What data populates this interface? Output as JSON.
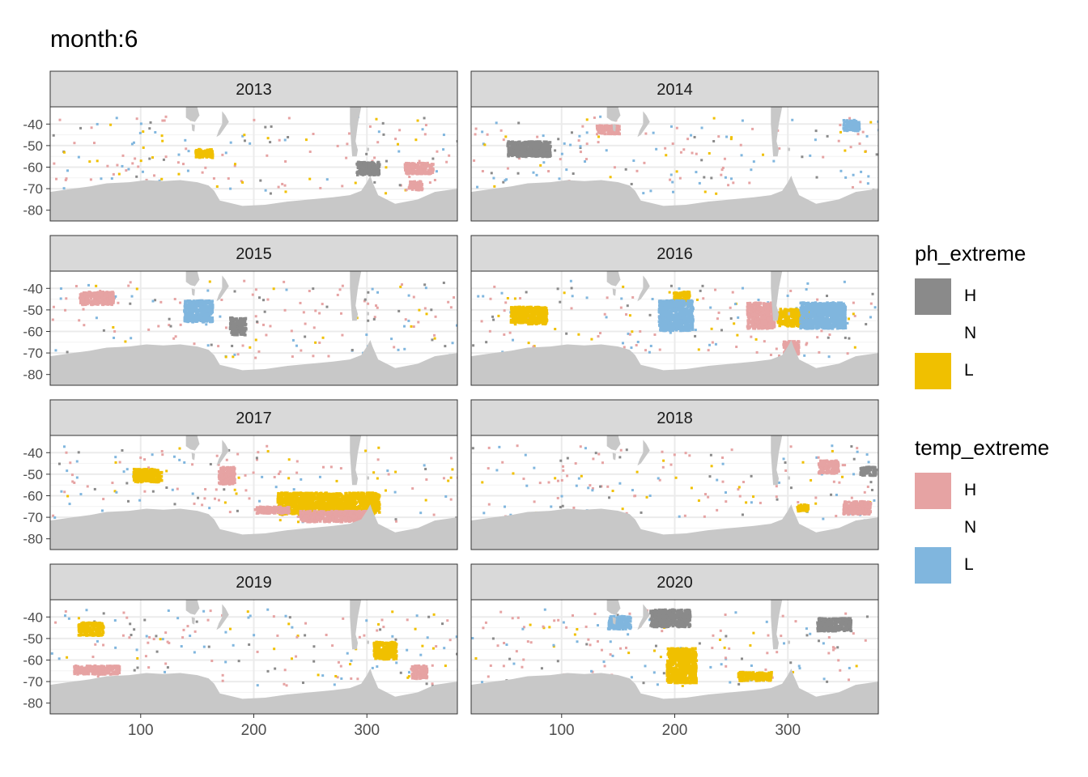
{
  "title": "month:6",
  "chart_data": {
    "type": "heatmap",
    "facets": [
      "2013",
      "2014",
      "2015",
      "2016",
      "2017",
      "2018",
      "2019",
      "2020"
    ],
    "x_ticks": [
      100,
      200,
      300
    ],
    "y_ticks": [
      -40,
      -50,
      -60,
      -70,
      -80
    ],
    "xlim": [
      20,
      380
    ],
    "ylim": [
      -85,
      -32
    ],
    "land_color": "#c8c8c8",
    "legends": [
      {
        "title": "ph_extreme",
        "entries": [
          {
            "label": "H",
            "color": "#8a8a8a"
          },
          {
            "label": "N",
            "color": "#ffffff"
          },
          {
            "label": "L",
            "color": "#f0c000"
          }
        ]
      },
      {
        "title": "temp_extreme",
        "entries": [
          {
            "label": "H",
            "color": "#e6a3a3"
          },
          {
            "label": "N",
            "color": "#ffffff"
          },
          {
            "label": "L",
            "color": "#80b6de"
          }
        ]
      }
    ],
    "regions": {
      "2013": [
        {
          "cat": "ph_L",
          "lon": 155,
          "lat": -53,
          "w": 15,
          "h": 4
        },
        {
          "cat": "temp_H",
          "lon": 345,
          "lat": -60,
          "w": 25,
          "h": 5
        },
        {
          "cat": "temp_H",
          "lon": 342,
          "lat": -68,
          "w": 12,
          "h": 4
        },
        {
          "cat": "ph_H",
          "lon": 300,
          "lat": -60,
          "w": 20,
          "h": 6
        }
      ],
      "2014": [
        {
          "cat": "ph_H",
          "lon": 70,
          "lat": -51,
          "w": 38,
          "h": 7
        },
        {
          "cat": "temp_H",
          "lon": 140,
          "lat": -42,
          "w": 20,
          "h": 4
        },
        {
          "cat": "temp_L",
          "lon": 355,
          "lat": -40,
          "w": 14,
          "h": 5
        }
      ],
      "2015": [
        {
          "cat": "ph_H",
          "lon": 185,
          "lat": -57,
          "w": 14,
          "h": 8
        },
        {
          "cat": "temp_H",
          "lon": 60,
          "lat": -44,
          "w": 30,
          "h": 6
        },
        {
          "cat": "temp_L",
          "lon": 150,
          "lat": -50,
          "w": 25,
          "h": 10
        }
      ],
      "2016": [
        {
          "cat": "ph_L",
          "lon": 70,
          "lat": -52,
          "w": 32,
          "h": 8
        },
        {
          "cat": "ph_L",
          "lon": 205,
          "lat": -44,
          "w": 14,
          "h": 6
        },
        {
          "cat": "temp_L",
          "lon": 200,
          "lat": -52,
          "w": 30,
          "h": 14
        },
        {
          "cat": "temp_H",
          "lon": 275,
          "lat": -52,
          "w": 24,
          "h": 12
        },
        {
          "cat": "ph_L",
          "lon": 305,
          "lat": -53,
          "w": 30,
          "h": 8
        },
        {
          "cat": "temp_L",
          "lon": 330,
          "lat": -52,
          "w": 40,
          "h": 12
        },
        {
          "cat": "temp_H",
          "lon": 302,
          "lat": -67,
          "w": 14,
          "h": 6
        }
      ],
      "2017": [
        {
          "cat": "ph_L",
          "lon": 105,
          "lat": -50,
          "w": 25,
          "h": 6
        },
        {
          "cat": "ph_L",
          "lon": 265,
          "lat": -63,
          "w": 90,
          "h": 10
        },
        {
          "cat": "temp_H",
          "lon": 270,
          "lat": -69,
          "w": 60,
          "h": 5
        },
        {
          "cat": "temp_H",
          "lon": 215,
          "lat": -66,
          "w": 30,
          "h": 3
        },
        {
          "cat": "temp_H",
          "lon": 175,
          "lat": -50,
          "w": 14,
          "h": 8
        }
      ],
      "2018": [
        {
          "cat": "temp_H",
          "lon": 335,
          "lat": -46,
          "w": 18,
          "h": 6
        },
        {
          "cat": "ph_H",
          "lon": 370,
          "lat": -48,
          "w": 14,
          "h": 4
        },
        {
          "cat": "temp_H",
          "lon": 360,
          "lat": -65,
          "w": 24,
          "h": 6
        },
        {
          "cat": "ph_L",
          "lon": 312,
          "lat": -65,
          "w": 10,
          "h": 3
        }
      ],
      "2019": [
        {
          "cat": "ph_L",
          "lon": 55,
          "lat": -45,
          "w": 22,
          "h": 6
        },
        {
          "cat": "temp_H",
          "lon": 60,
          "lat": -64,
          "w": 40,
          "h": 4
        },
        {
          "cat": "ph_L",
          "lon": 315,
          "lat": -55,
          "w": 20,
          "h": 8
        },
        {
          "cat": "temp_H",
          "lon": 345,
          "lat": -65,
          "w": 14,
          "h": 6
        }
      ],
      "2020": [
        {
          "cat": "ph_H",
          "lon": 195,
          "lat": -40,
          "w": 35,
          "h": 8
        },
        {
          "cat": "ph_L",
          "lon": 205,
          "lat": -62,
          "w": 26,
          "h": 16
        },
        {
          "cat": "temp_L",
          "lon": 150,
          "lat": -42,
          "w": 20,
          "h": 6
        },
        {
          "cat": "ph_L",
          "lon": 270,
          "lat": -67,
          "w": 30,
          "h": 4
        },
        {
          "cat": "ph_H",
          "lon": 340,
          "lat": -43,
          "w": 30,
          "h": 6
        }
      ]
    }
  }
}
